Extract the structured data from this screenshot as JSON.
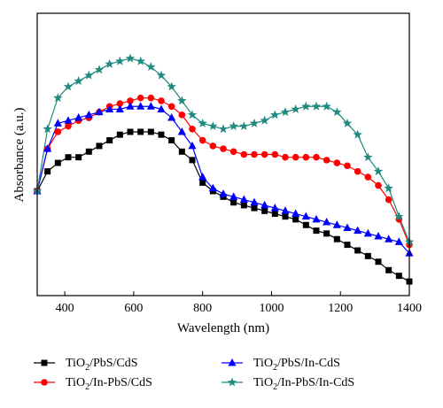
{
  "chart_data": {
    "type": "line",
    "title": "",
    "xlabel": "Wavelength (nm)",
    "ylabel": "Absorbance (a.u.)",
    "xlim": [
      320,
      1400
    ],
    "ylim": [
      0,
      1
    ],
    "xticks": [
      400,
      600,
      800,
      1000,
      1200,
      1400
    ],
    "yticks": [],
    "grid": false,
    "legend_position": "bottom",
    "series": [
      {
        "name_main_1": "TiO",
        "name_sub_1": "2",
        "name_main_2": "/PbS/CdS",
        "color": "#000000",
        "marker": "square",
        "x": [
          320,
          350,
          380,
          410,
          440,
          470,
          500,
          530,
          560,
          590,
          620,
          650,
          680,
          710,
          740,
          770,
          800,
          830,
          860,
          890,
          920,
          950,
          980,
          1010,
          1040,
          1070,
          1100,
          1130,
          1160,
          1190,
          1220,
          1250,
          1280,
          1310,
          1340,
          1370,
          1400
        ],
        "y": [
          0.37,
          0.44,
          0.47,
          0.49,
          0.49,
          0.51,
          0.53,
          0.55,
          0.57,
          0.58,
          0.58,
          0.58,
          0.57,
          0.55,
          0.51,
          0.48,
          0.4,
          0.37,
          0.35,
          0.33,
          0.32,
          0.31,
          0.3,
          0.29,
          0.28,
          0.27,
          0.25,
          0.23,
          0.22,
          0.2,
          0.18,
          0.16,
          0.14,
          0.12,
          0.09,
          0.07,
          0.05
        ]
      },
      {
        "name_main_1": "TiO",
        "name_sub_1": "2",
        "name_main_2": "/In-PbS/CdS",
        "color": "#ff0000",
        "marker": "circle",
        "x": [
          320,
          350,
          380,
          410,
          440,
          470,
          500,
          530,
          560,
          590,
          620,
          650,
          680,
          710,
          740,
          770,
          800,
          830,
          860,
          890,
          920,
          950,
          980,
          1010,
          1040,
          1070,
          1100,
          1130,
          1160,
          1190,
          1220,
          1250,
          1280,
          1310,
          1340,
          1370,
          1400
        ],
        "y": [
          0.37,
          0.52,
          0.58,
          0.6,
          0.62,
          0.63,
          0.65,
          0.67,
          0.68,
          0.69,
          0.7,
          0.7,
          0.69,
          0.67,
          0.64,
          0.59,
          0.55,
          0.53,
          0.52,
          0.51,
          0.5,
          0.5,
          0.5,
          0.5,
          0.49,
          0.49,
          0.49,
          0.49,
          0.48,
          0.47,
          0.46,
          0.44,
          0.42,
          0.39,
          0.34,
          0.27,
          0.18
        ]
      },
      {
        "name_main_1": "TiO",
        "name_sub_1": "2",
        "name_main_2": "/PbS/In-CdS",
        "color": "#0000ff",
        "marker": "triangle",
        "x": [
          320,
          350,
          380,
          410,
          440,
          470,
          500,
          530,
          560,
          590,
          620,
          650,
          680,
          710,
          740,
          770,
          800,
          830,
          860,
          890,
          920,
          950,
          980,
          1010,
          1040,
          1070,
          1100,
          1130,
          1160,
          1190,
          1220,
          1250,
          1280,
          1310,
          1340,
          1370,
          1400
        ],
        "y": [
          0.37,
          0.52,
          0.61,
          0.62,
          0.63,
          0.64,
          0.65,
          0.66,
          0.66,
          0.67,
          0.67,
          0.67,
          0.66,
          0.63,
          0.58,
          0.53,
          0.42,
          0.38,
          0.36,
          0.35,
          0.34,
          0.33,
          0.32,
          0.31,
          0.3,
          0.29,
          0.28,
          0.27,
          0.26,
          0.25,
          0.24,
          0.23,
          0.22,
          0.21,
          0.2,
          0.19,
          0.15
        ]
      },
      {
        "name_main_1": "TiO",
        "name_sub_1": "2",
        "name_main_2": "/In-PbS/In-CdS",
        "color": "#1f8a80",
        "marker": "star",
        "x": [
          320,
          350,
          380,
          410,
          440,
          470,
          500,
          530,
          560,
          590,
          620,
          650,
          680,
          710,
          740,
          770,
          800,
          830,
          860,
          890,
          920,
          950,
          980,
          1010,
          1040,
          1070,
          1100,
          1130,
          1160,
          1190,
          1220,
          1250,
          1280,
          1310,
          1340,
          1370,
          1400
        ],
        "y": [
          0.37,
          0.59,
          0.7,
          0.74,
          0.76,
          0.78,
          0.8,
          0.82,
          0.83,
          0.84,
          0.83,
          0.81,
          0.78,
          0.74,
          0.69,
          0.64,
          0.61,
          0.6,
          0.59,
          0.6,
          0.6,
          0.61,
          0.62,
          0.64,
          0.65,
          0.66,
          0.67,
          0.67,
          0.67,
          0.65,
          0.61,
          0.57,
          0.49,
          0.44,
          0.38,
          0.28,
          0.19
        ]
      }
    ]
  }
}
